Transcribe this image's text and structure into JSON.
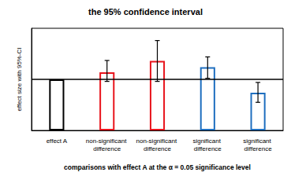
{
  "chart_data": {
    "type": "bar",
    "title": "the 95% confidence interval",
    "x_label": "comparisons with effect A at the α = 0.05 significance level",
    "y_label": "effect size with 95%-CI",
    "categories": [
      "effect A",
      "non-significant difference",
      "non-significant difference",
      "significant difference",
      "significant difference"
    ],
    "values": [
      5.0,
      5.7,
      6.8,
      6.2,
      3.7
    ],
    "ci_low": [
      null,
      4.8,
      4.8,
      5.1,
      2.75
    ],
    "ci_high": [
      null,
      6.85,
      8.8,
      7.2,
      4.7
    ],
    "colors": [
      "#000000",
      "#e8141c",
      "#e8141c",
      "#1f6fbf",
      "#1f6fbf"
    ],
    "reference_line": 5.0,
    "ylim": [
      0,
      10
    ],
    "grid": false,
    "tick_labels": "x"
  }
}
